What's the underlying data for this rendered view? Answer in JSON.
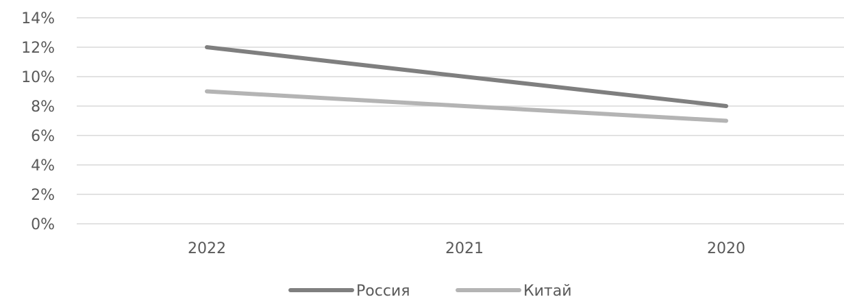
{
  "chart_data": {
    "type": "line",
    "categories": [
      "2022",
      "2021",
      "2020"
    ],
    "series": [
      {
        "name": "Россия",
        "values": [
          12,
          10,
          8
        ],
        "color": "#7f7f7f"
      },
      {
        "name": "Китай",
        "values": [
          9,
          8,
          7
        ],
        "color": "#b4b4b4"
      }
    ],
    "ylim": [
      0,
      14
    ],
    "yticks": [
      "0%",
      "2%",
      "4%",
      "6%",
      "8%",
      "10%",
      "12%",
      "14%"
    ],
    "grid": true,
    "legend_position": "bottom",
    "gridline_color": "#d9d9d9"
  }
}
